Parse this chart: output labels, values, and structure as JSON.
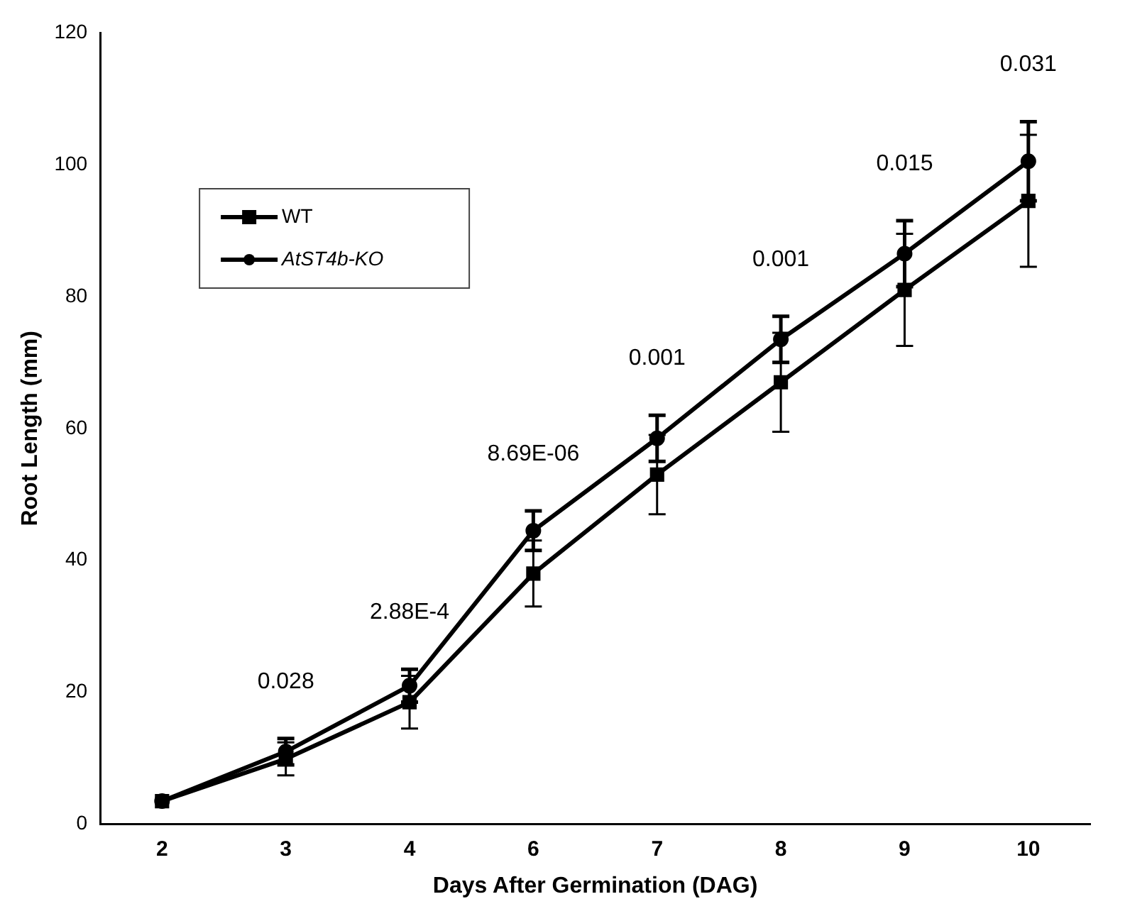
{
  "chart_data": {
    "type": "line",
    "xlabel": "Days After Germination (DAG)",
    "ylabel": "Root Length (mm)",
    "categories": [
      "2",
      "3",
      "4",
      "6",
      "7",
      "8",
      "9",
      "10"
    ],
    "series": [
      {
        "name": "WT",
        "color": "#000000",
        "marker": "square",
        "values": [
          3.5,
          9.9,
          18.5,
          38,
          53,
          67,
          81,
          94.5
        ],
        "errors": [
          null,
          2.5,
          4,
          5,
          6,
          7.5,
          8.5,
          10
        ]
      },
      {
        "name": "AtST4b-KO",
        "color": "#000000",
        "marker": "circle",
        "values": [
          3.5,
          11,
          21,
          44.5,
          58.5,
          73.5,
          86.5,
          100.5
        ],
        "errors": [
          null,
          2,
          2.5,
          3,
          3.5,
          3.5,
          5,
          6
        ]
      }
    ],
    "annotations": [
      "0.028",
      "2.88E-4",
      "8.69E-06",
      "0.001",
      "0.001",
      "0.015",
      "0.031"
    ],
    "ylim": [
      0,
      120
    ],
    "yticks": [
      0,
      20,
      40,
      60,
      80,
      100,
      120
    ],
    "grid": false,
    "legend": "top left",
    "line_style": "solid"
  }
}
